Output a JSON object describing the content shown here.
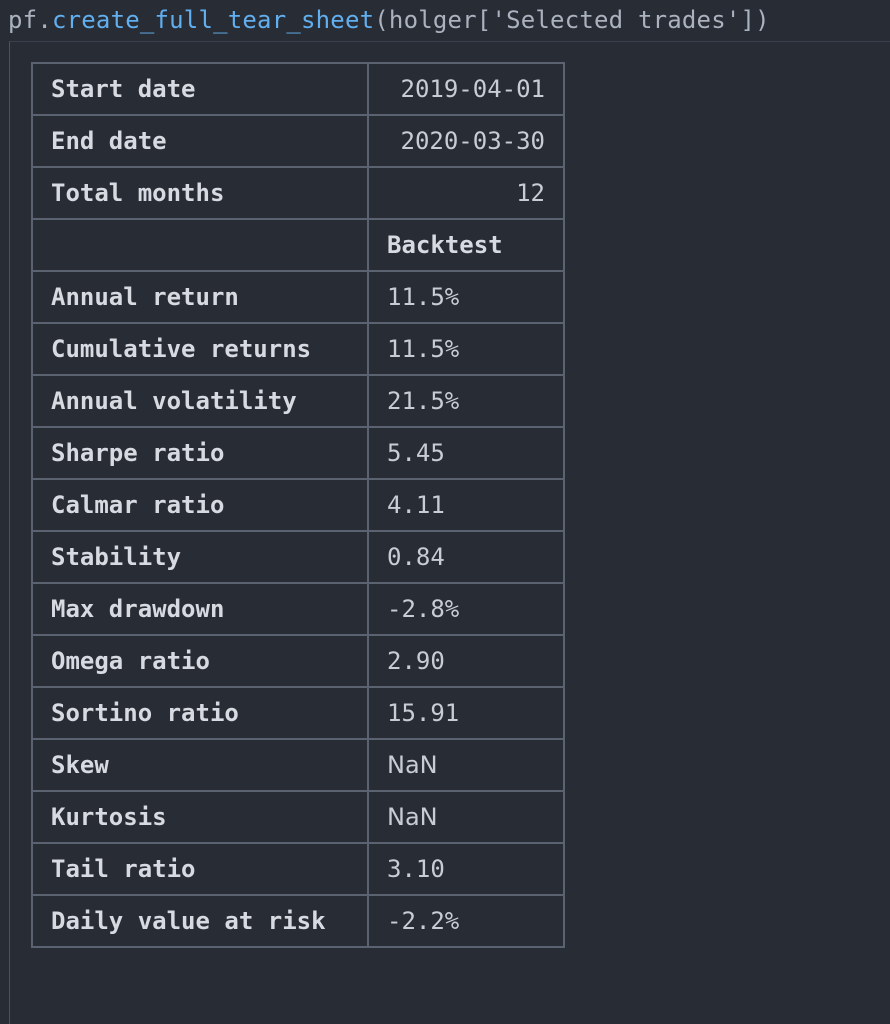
{
  "code": {
    "object": "pf",
    "dot": ".",
    "function": "create_full_tear_sheet",
    "args": "(holger['Selected trades'])"
  },
  "summary_rows": [
    {
      "label": "Start date",
      "value": "2019-04-01"
    },
    {
      "label": "End date",
      "value": "2020-03-30"
    },
    {
      "label": "Total months",
      "value": "12"
    }
  ],
  "column_header": "Backtest",
  "stat_rows": [
    {
      "label": "Annual return",
      "value": "11.5%"
    },
    {
      "label": "Cumulative returns",
      "value": "11.5%"
    },
    {
      "label": "Annual volatility",
      "value": "21.5%"
    },
    {
      "label": "Sharpe ratio",
      "value": "5.45"
    },
    {
      "label": "Calmar ratio",
      "value": "4.11"
    },
    {
      "label": "Stability",
      "value": "0.84"
    },
    {
      "label": "Max drawdown",
      "value": "-2.8%"
    },
    {
      "label": "Omega ratio",
      "value": "2.90"
    },
    {
      "label": "Sortino ratio",
      "value": "15.91"
    },
    {
      "label": "Skew",
      "value": "NaN"
    },
    {
      "label": "Kurtosis",
      "value": "NaN"
    },
    {
      "label": "Tail ratio",
      "value": "3.10"
    },
    {
      "label": "Daily value at risk",
      "value": "-2.2%"
    }
  ],
  "colors": {
    "background": "#282c34",
    "function": "#61afef",
    "text": "#abb2bf",
    "border": "#5c6370"
  }
}
